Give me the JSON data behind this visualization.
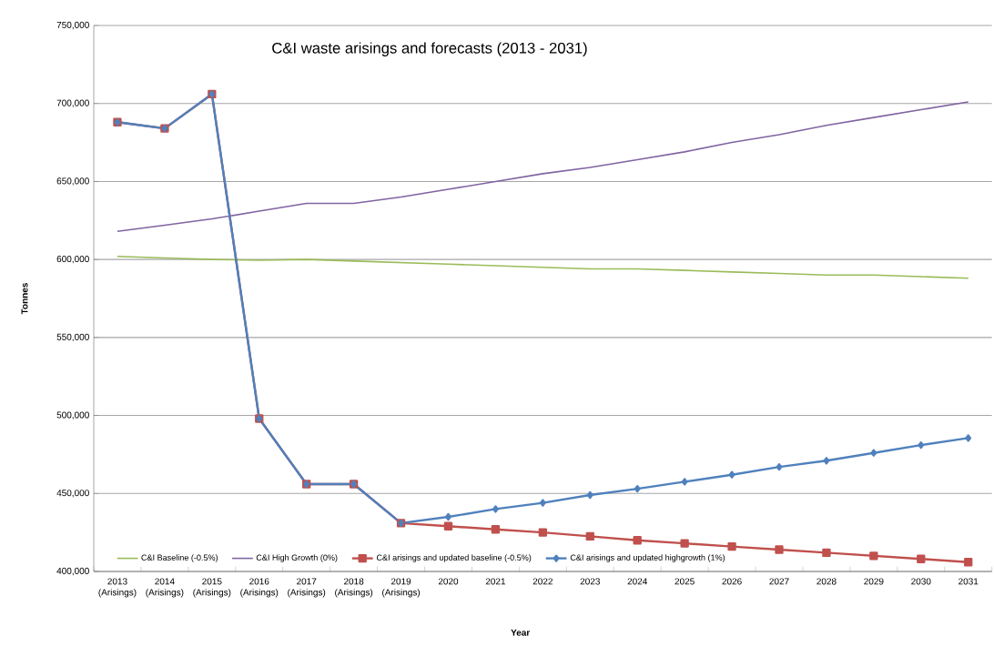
{
  "chart_data": {
    "type": "line",
    "title": "C&I waste arisings and forecasts (2013 - 2031)",
    "xlabel": "Year",
    "ylabel": "Tonnes",
    "categories": [
      "2013 (Arisings)",
      "2014 (Arisings)",
      "2015 (Arisings)",
      "2016 (Arisings)",
      "2017 (Arisings)",
      "2018 (Arisings)",
      "2019 (Arisings)",
      "2020",
      "2021",
      "2022",
      "2023",
      "2024",
      "2025",
      "2026",
      "2027",
      "2028",
      "2029",
      "2030",
      "2031"
    ],
    "series": [
      {
        "name": "C&I Baseline (-0.5%)",
        "color": "#9bbb59",
        "marker": "none",
        "values": [
          602000,
          601000,
          600000,
          599500,
          600000,
          599000,
          598000,
          597000,
          596000,
          595000,
          594000,
          594000,
          593000,
          592000,
          591000,
          590000,
          590000,
          589000,
          588000
        ]
      },
      {
        "name": "C&I High Growth (0%)",
        "color": "#8064a2",
        "marker": "none",
        "values": [
          618000,
          622000,
          626000,
          631000,
          636000,
          636000,
          640000,
          645000,
          650000,
          655000,
          659000,
          664000,
          669000,
          675000,
          680000,
          686000,
          691000,
          696000,
          701000
        ]
      },
      {
        "name": "C&I arisings and updated baseline (-0.5%)",
        "color": "#c0504d",
        "marker": "square",
        "values": [
          688000,
          684000,
          706000,
          498000,
          456000,
          456000,
          431000,
          429000,
          427000,
          425000,
          422500,
          420000,
          418000,
          416000,
          414000,
          412000,
          410000,
          408000,
          406000
        ]
      },
      {
        "name": "C&I arisings and updated highgrowth (1%)",
        "color": "#4f81bd",
        "marker": "diamond",
        "values": [
          688000,
          684000,
          706000,
          498000,
          456000,
          456000,
          431000,
          435000,
          440000,
          444000,
          449000,
          453000,
          457500,
          462000,
          467000,
          471000,
          476000,
          481000,
          485500
        ]
      }
    ],
    "ylim": [
      400000,
      750000
    ],
    "yticks": [
      {
        "value": 400000,
        "label": "400,000"
      },
      {
        "value": 450000,
        "label": "450,000"
      },
      {
        "value": 500000,
        "label": "500,000"
      },
      {
        "value": 550000,
        "label": "550,000"
      },
      {
        "value": 600000,
        "label": "600,000"
      },
      {
        "value": 650000,
        "label": "650,000"
      },
      {
        "value": 700000,
        "label": "700,000"
      },
      {
        "value": 750000,
        "label": "750,000"
      }
    ],
    "grid": "y",
    "legend": "bottom"
  }
}
